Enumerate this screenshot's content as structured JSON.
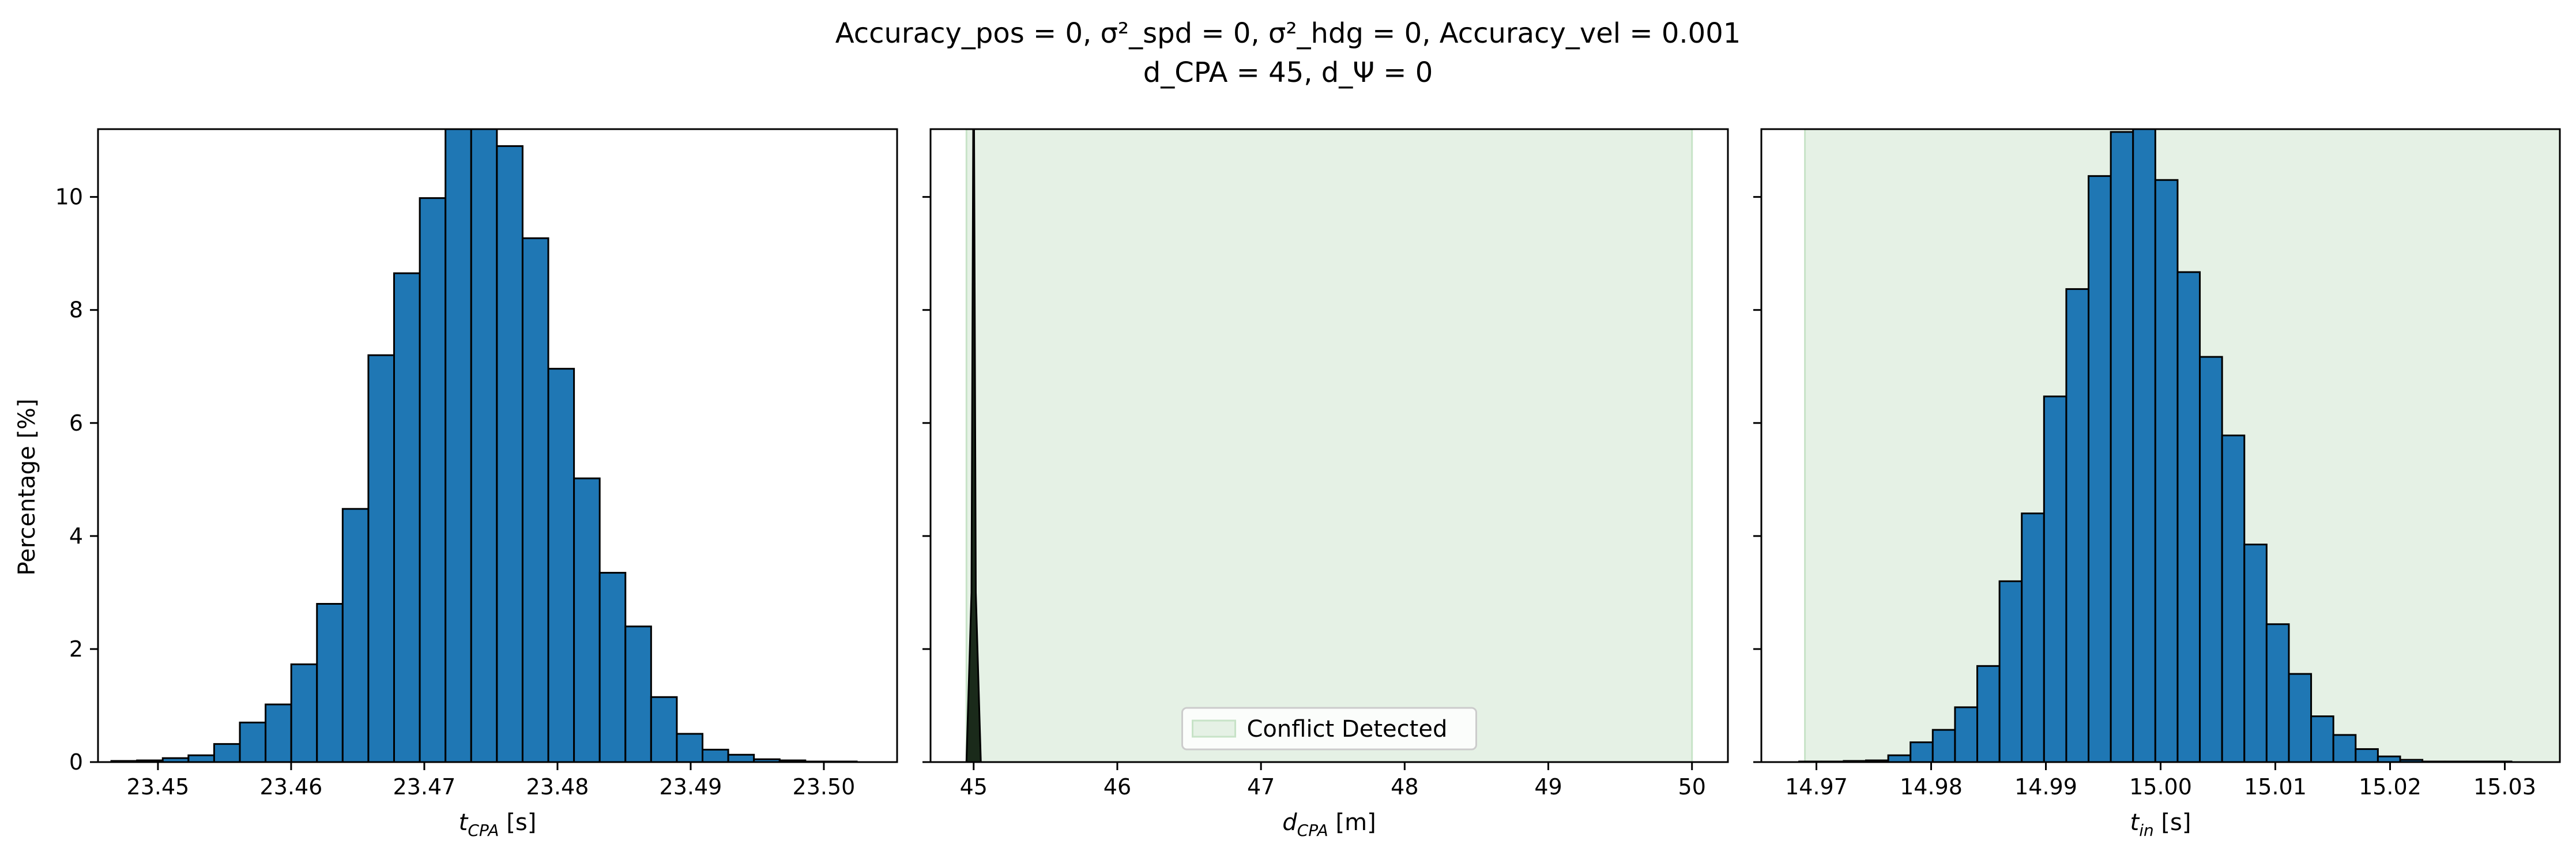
{
  "figure": {
    "title_line1": "Accuracy_pos = 0, σ²_spd = 0, σ²_hdg = 0, Accuracy_vel = 0.001",
    "title_line2": "d_CPA = 45, d_Ψ = 0"
  },
  "colors": {
    "bar_fill": "#1f77b4",
    "bar_edge": "#000000",
    "conflict_fill": "#e5f1e5",
    "conflict_edge": "#c7e3c7"
  },
  "chart_data": [
    {
      "type": "bar",
      "name": "t_cpa_histogram",
      "xlabel_main": "t",
      "xlabel_sub": "CPA",
      "xlabel_unit": " [s]",
      "ylabel": "Percentage [%]",
      "xlim": [
        23.4455,
        23.5055
      ],
      "ylim": [
        0,
        11.2
      ],
      "xticks": [
        23.45,
        23.46,
        23.47,
        23.48,
        23.49,
        23.5
      ],
      "xtick_labels": [
        "23.45",
        "23.46",
        "23.47",
        "23.48",
        "23.49",
        "23.50"
      ],
      "yticks": [
        0,
        2,
        4,
        6,
        8,
        10
      ],
      "ytick_labels": [
        "0",
        "2",
        "4",
        "6",
        "8",
        "10"
      ],
      "bin_start": 23.4465,
      "bin_width": 0.00193,
      "values": [
        0.02,
        0.03,
        0.07,
        0.12,
        0.32,
        0.7,
        1.02,
        1.73,
        2.8,
        4.48,
        7.2,
        8.65,
        9.98,
        11.3,
        11.3,
        10.9,
        9.27,
        6.96,
        5.02,
        3.35,
        2.4,
        1.15,
        0.5,
        0.22,
        0.13,
        0.05,
        0.03,
        0.01,
        0.01
      ],
      "grid": false
    },
    {
      "type": "bar",
      "name": "d_cpa_histogram",
      "xlabel_main": "d",
      "xlabel_sub": "CPA",
      "xlabel_unit": " [m]",
      "xlim": [
        44.7,
        50.25
      ],
      "ylim": [
        0,
        11.2
      ],
      "xticks": [
        45,
        46,
        47,
        48,
        49,
        50
      ],
      "xtick_labels": [
        "45",
        "46",
        "47",
        "48",
        "49",
        "50"
      ],
      "conflict_region": [
        44.95,
        50.0
      ],
      "spike_center": 45.0,
      "spike_halfwidth": 0.05,
      "legend": {
        "label": "Conflict Detected",
        "position": "lower center"
      },
      "grid": false
    },
    {
      "type": "bar",
      "name": "t_in_histogram",
      "xlabel_main": "t",
      "xlabel_sub": "in",
      "xlabel_unit": " [s]",
      "xlim": [
        14.9652,
        15.0348
      ],
      "ylim": [
        0,
        11.2
      ],
      "xticks": [
        14.97,
        14.98,
        14.99,
        15.0,
        15.01,
        15.02,
        15.03
      ],
      "xtick_labels": [
        "14.97",
        "14.98",
        "14.99",
        "15.00",
        "15.01",
        "15.02",
        "15.03"
      ],
      "conflict_region": [
        14.969,
        15.04
      ],
      "bin_start": 14.9685,
      "bin_width": 0.00194,
      "values": [
        0.01,
        0.01,
        0.02,
        0.03,
        0.12,
        0.35,
        0.57,
        0.97,
        1.7,
        3.2,
        4.4,
        6.47,
        8.37,
        10.37,
        11.15,
        11.3,
        10.3,
        8.67,
        7.17,
        5.78,
        3.85,
        2.44,
        1.56,
        0.81,
        0.48,
        0.23,
        0.1,
        0.04,
        0.01,
        0.01,
        0.01,
        0.01
      ],
      "grid": false
    }
  ]
}
